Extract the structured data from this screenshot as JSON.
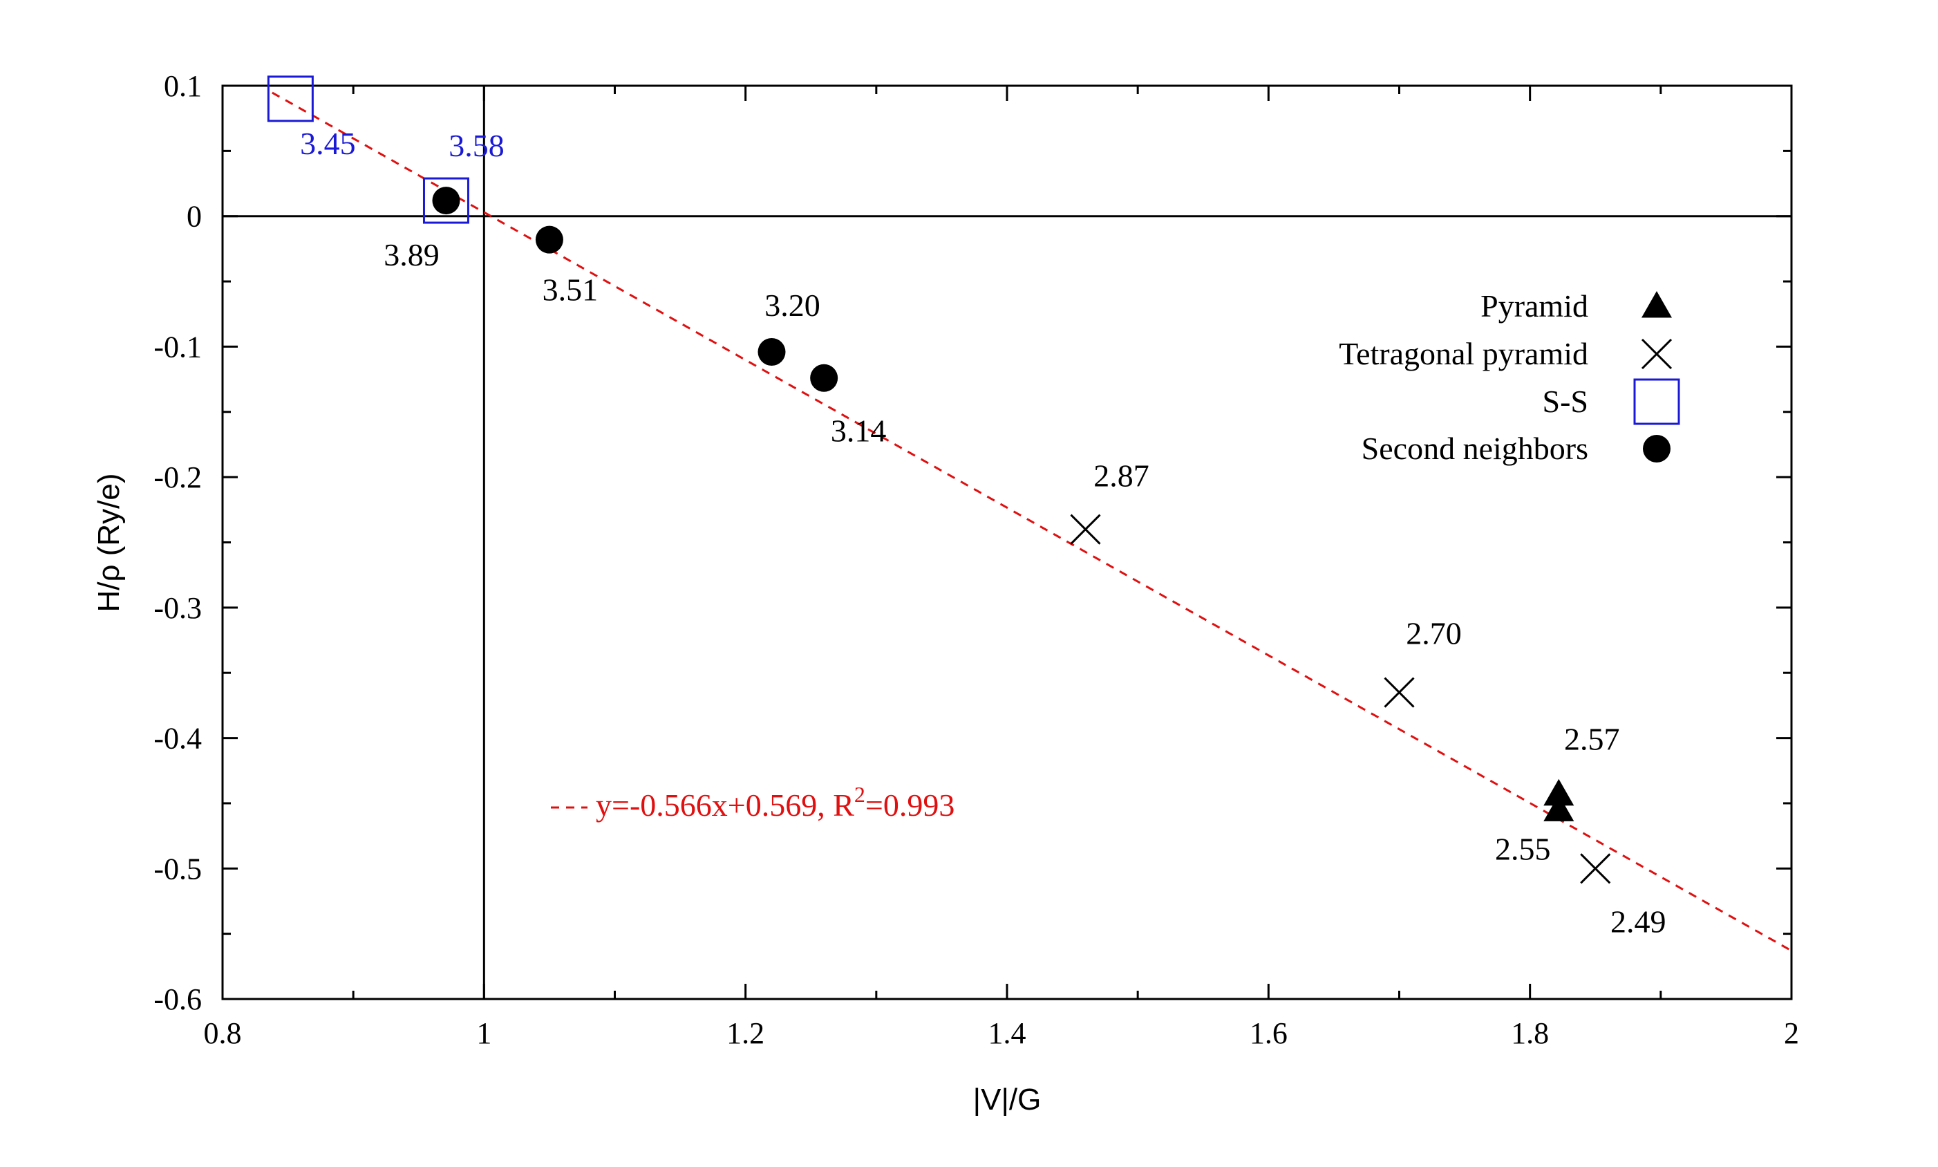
{
  "chart_data": {
    "type": "scatter",
    "xlabel": "|V|/G",
    "ylabel": "H/ρ (Ry/e)",
    "xlim": [
      0.8,
      2.0
    ],
    "ylim": [
      -0.6,
      0.1
    ],
    "x_ticks": [
      0.8,
      1.0,
      1.2,
      1.4,
      1.6,
      1.8,
      2.0
    ],
    "x_tick_labels": [
      "0.8",
      "1",
      "1.2",
      "1.4",
      "1.6",
      "1.8",
      "2"
    ],
    "y_ticks": [
      0.1,
      0.0,
      -0.1,
      -0.2,
      -0.3,
      -0.4,
      -0.5,
      -0.6
    ],
    "y_tick_labels": [
      "0.1",
      "0",
      "-0.1",
      "-0.2",
      "-0.3",
      "-0.4",
      "-0.5",
      "-0.6"
    ],
    "reference_lines": {
      "x": 1.0,
      "y": 0.0
    },
    "colors": {
      "ss": "#1a1ad6",
      "fit": "#e01010",
      "black": "#000000"
    },
    "series": [
      {
        "name": "Pyramid",
        "marker": "triangle",
        "points": [
          {
            "x": 1.822,
            "y": -0.443,
            "label": "2.57"
          },
          {
            "x": 1.822,
            "y": -0.455,
            "label": "2.55"
          }
        ]
      },
      {
        "name": "Tetragonal pyramid",
        "marker": "cross",
        "points": [
          {
            "x": 1.46,
            "y": -0.24,
            "label": "2.87"
          },
          {
            "x": 1.7,
            "y": -0.365,
            "label": "2.70"
          },
          {
            "x": 1.85,
            "y": -0.5,
            "label": "2.49"
          }
        ]
      },
      {
        "name": "S-S",
        "marker": "square",
        "points": [
          {
            "x": 0.852,
            "y": 0.09,
            "label": "3.45"
          },
          {
            "x": 0.971,
            "y": 0.012,
            "label": "3.58"
          }
        ]
      },
      {
        "name": "Second neighbors",
        "marker": "circle",
        "points": [
          {
            "x": 0.971,
            "y": 0.012,
            "label": "3.89"
          },
          {
            "x": 1.05,
            "y": -0.018,
            "label": "3.51"
          },
          {
            "x": 1.22,
            "y": -0.104,
            "label": "3.20"
          },
          {
            "x": 1.26,
            "y": -0.124,
            "label": "3.14"
          }
        ]
      }
    ],
    "fit": {
      "slope": -0.566,
      "intercept": 0.569,
      "x_range": [
        0.838,
        2.0
      ],
      "label_prefix": "y=-0.566x+0.569, R",
      "label_sup": "2",
      "label_suffix": "=0.993"
    },
    "legend": {
      "position": "right",
      "entries": [
        "Pyramid",
        "Tetragonal pyramid",
        "S-S",
        "Second neighbors"
      ]
    }
  }
}
